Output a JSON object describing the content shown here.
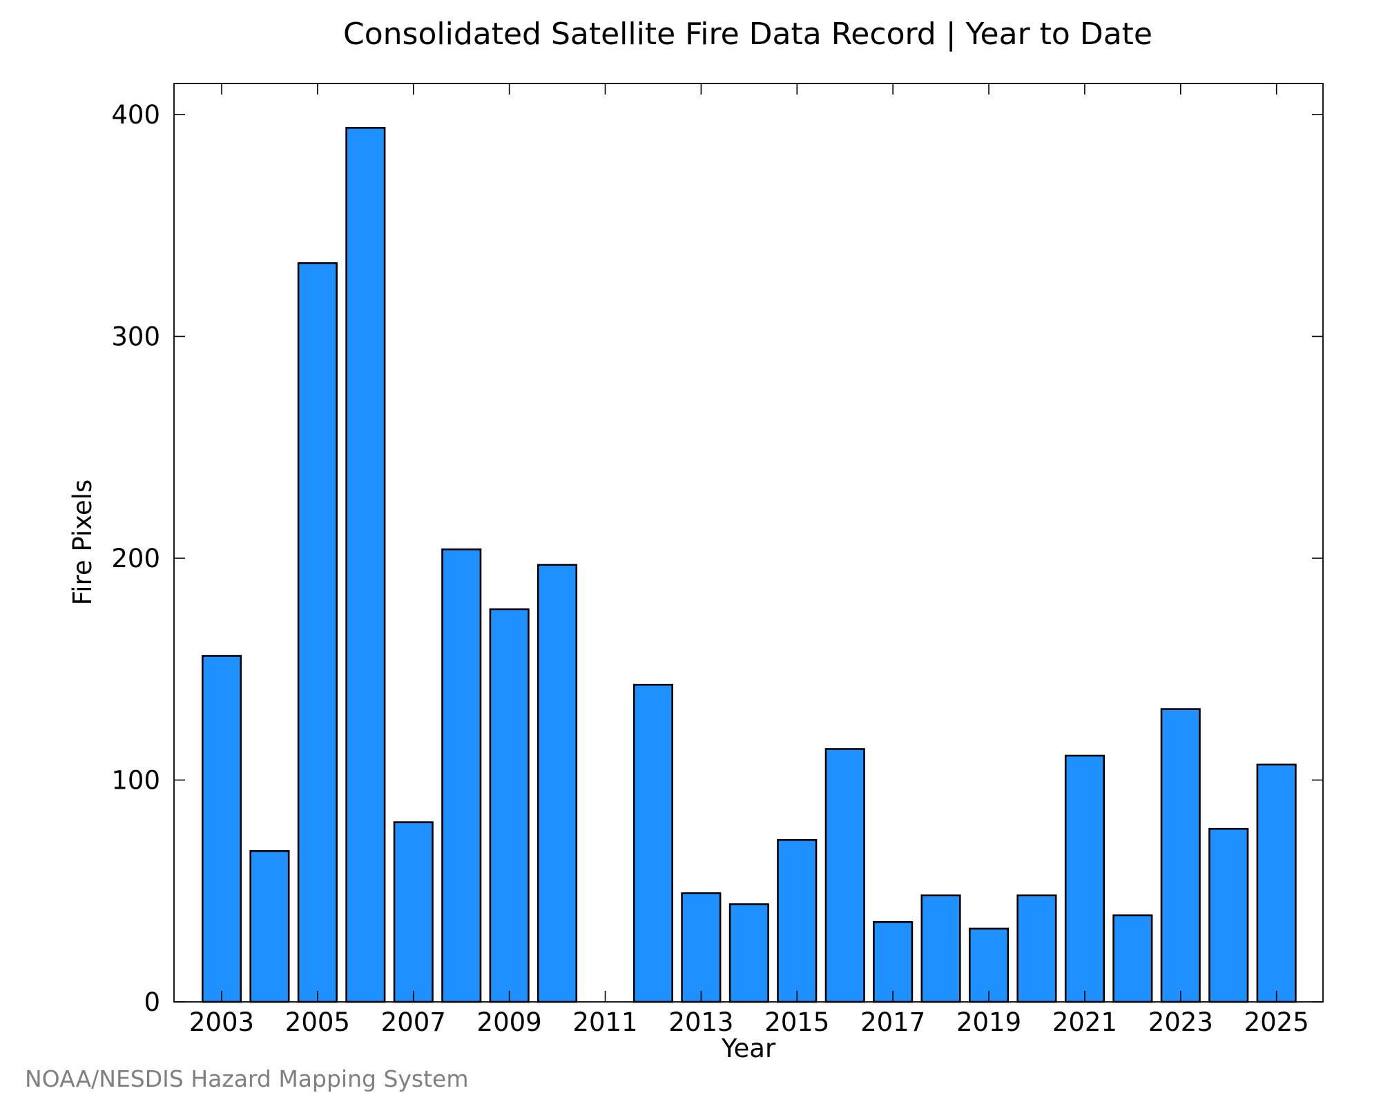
{
  "chart_data": {
    "type": "bar",
    "title": "Consolidated Satellite Fire Data Record | Year to Date",
    "xlabel": "Year",
    "ylabel": "Fire Pixels",
    "credit": "NOAA/NESDIS Hazard Mapping System",
    "categories": [
      "2003",
      "2004",
      "2005",
      "2006",
      "2007",
      "2008",
      "2009",
      "2010",
      "2011",
      "2012",
      "2013",
      "2014",
      "2015",
      "2016",
      "2017",
      "2018",
      "2019",
      "2020",
      "2021",
      "2022",
      "2023",
      "2024",
      "2025"
    ],
    "values": [
      156,
      68,
      333,
      394,
      81,
      204,
      177,
      197,
      0,
      143,
      49,
      44,
      73,
      114,
      36,
      48,
      33,
      48,
      111,
      39,
      132,
      78,
      107
    ],
    "x_tick_labels": [
      "2003",
      "2005",
      "2007",
      "2009",
      "2011",
      "2013",
      "2015",
      "2017",
      "2019",
      "2021",
      "2023",
      "2025"
    ],
    "y_tick_labels": [
      "0",
      "100",
      "200",
      "300",
      "400"
    ],
    "y_ticks": [
      0,
      100,
      200,
      300,
      400
    ],
    "ylim": [
      0,
      414
    ],
    "grid": false,
    "bar_color": "#1e90ff",
    "bar_edge_color": "#000000"
  }
}
